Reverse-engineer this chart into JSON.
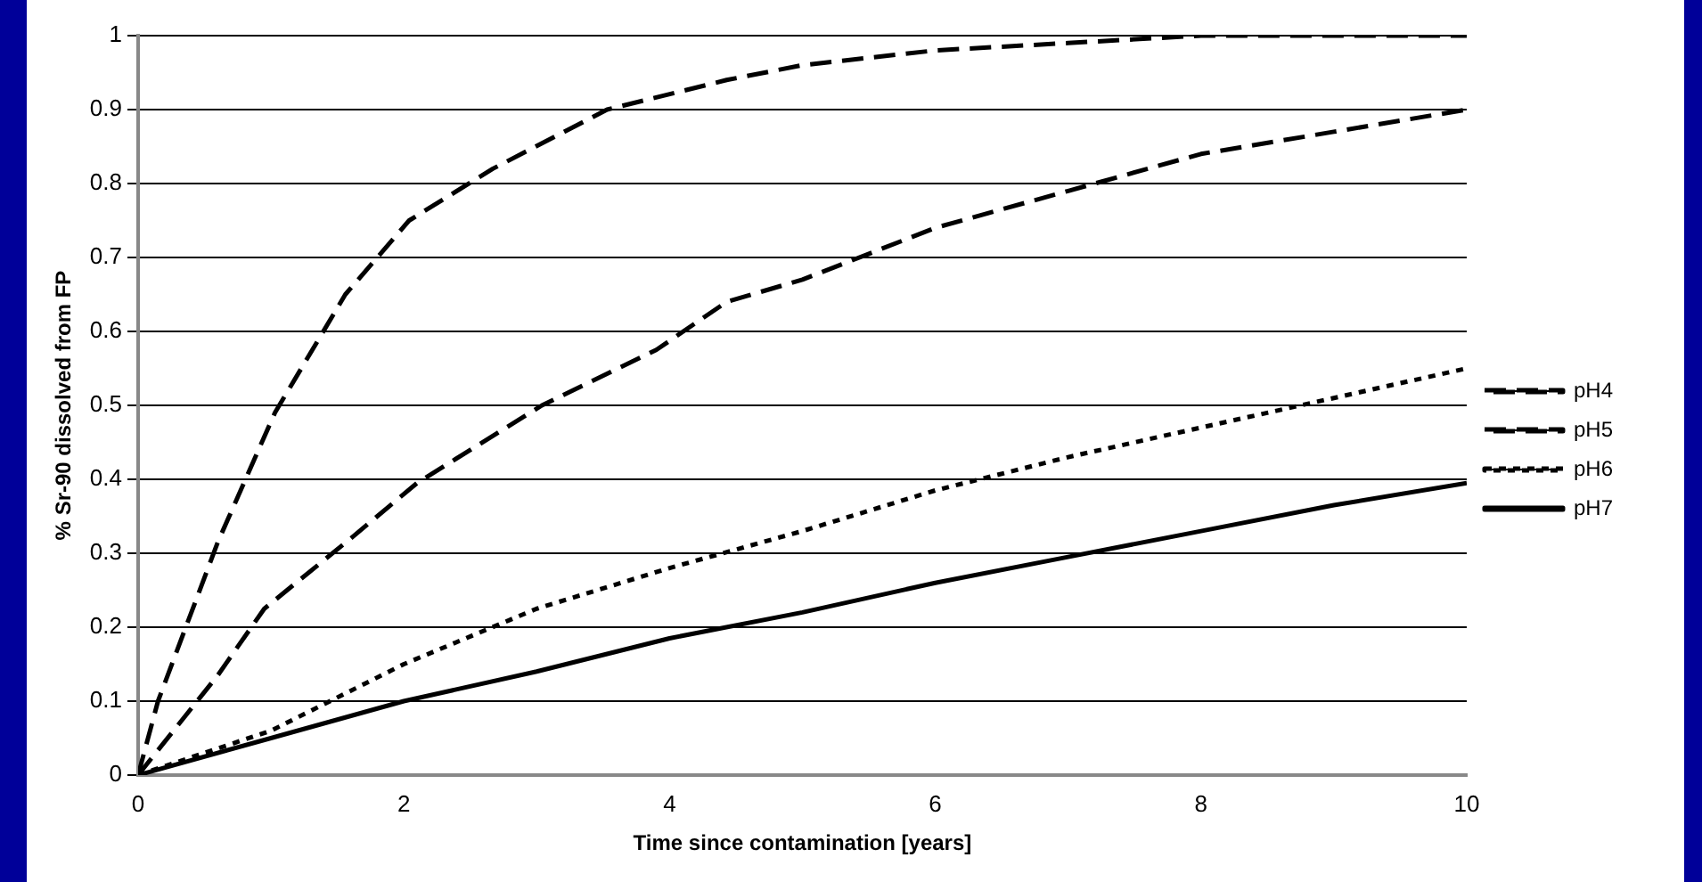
{
  "chart_data": {
    "type": "line",
    "xlabel": "Time since contamination [years]",
    "ylabel": "% Sr-90 dissolved from FP",
    "xlim": [
      0,
      10
    ],
    "xticks": [
      0,
      2,
      4,
      6,
      8,
      10
    ],
    "ylim": [
      0,
      1
    ],
    "yticks": [
      0,
      0.1,
      0.2,
      0.3,
      0.4,
      0.5,
      0.6,
      0.7,
      0.8,
      0.9,
      1
    ],
    "grid": "y",
    "legend": "right",
    "marker": "none",
    "series": [
      {
        "name": "pH4",
        "color": "#000000",
        "line_style": "dashed",
        "x": [
          0,
          0.15,
          0.6,
          1.03,
          1.56,
          2.04,
          2.67,
          3.53,
          4.43,
          5,
          6,
          7,
          8,
          9,
          10
        ],
        "values": [
          0,
          0.1,
          0.315,
          0.49,
          0.65,
          0.75,
          0.82,
          0.9,
          0.94,
          0.96,
          0.98,
          0.99,
          1,
          1,
          1
        ]
      },
      {
        "name": "pH5",
        "color": "#000000",
        "line_style": "dashed",
        "x": [
          0,
          0.6,
          0.95,
          1.6,
          2.1,
          3.04,
          3.9,
          4.43,
          5,
          6,
          7,
          8,
          9,
          10
        ],
        "values": [
          0,
          0.135,
          0.225,
          0.32,
          0.395,
          0.5,
          0.575,
          0.64,
          0.67,
          0.74,
          0.79,
          0.84,
          0.87,
          0.9
        ]
      },
      {
        "name": "pH6",
        "color": "#000000",
        "line_style": "dotted",
        "x": [
          0,
          1,
          2,
          3,
          4,
          5,
          6,
          7,
          8,
          9,
          10
        ],
        "values": [
          0,
          0.06,
          0.15,
          0.225,
          0.28,
          0.33,
          0.385,
          0.43,
          0.47,
          0.51,
          0.55
        ]
      },
      {
        "name": "pH7",
        "color": "#000000",
        "line_style": "solid",
        "x": [
          0,
          0.1,
          1,
          2,
          3,
          4,
          5,
          6,
          7,
          8,
          9,
          10
        ],
        "values": [
          0,
          0.005,
          0.05,
          0.1,
          0.14,
          0.185,
          0.22,
          0.26,
          0.295,
          0.33,
          0.365,
          0.395
        ]
      }
    ]
  }
}
